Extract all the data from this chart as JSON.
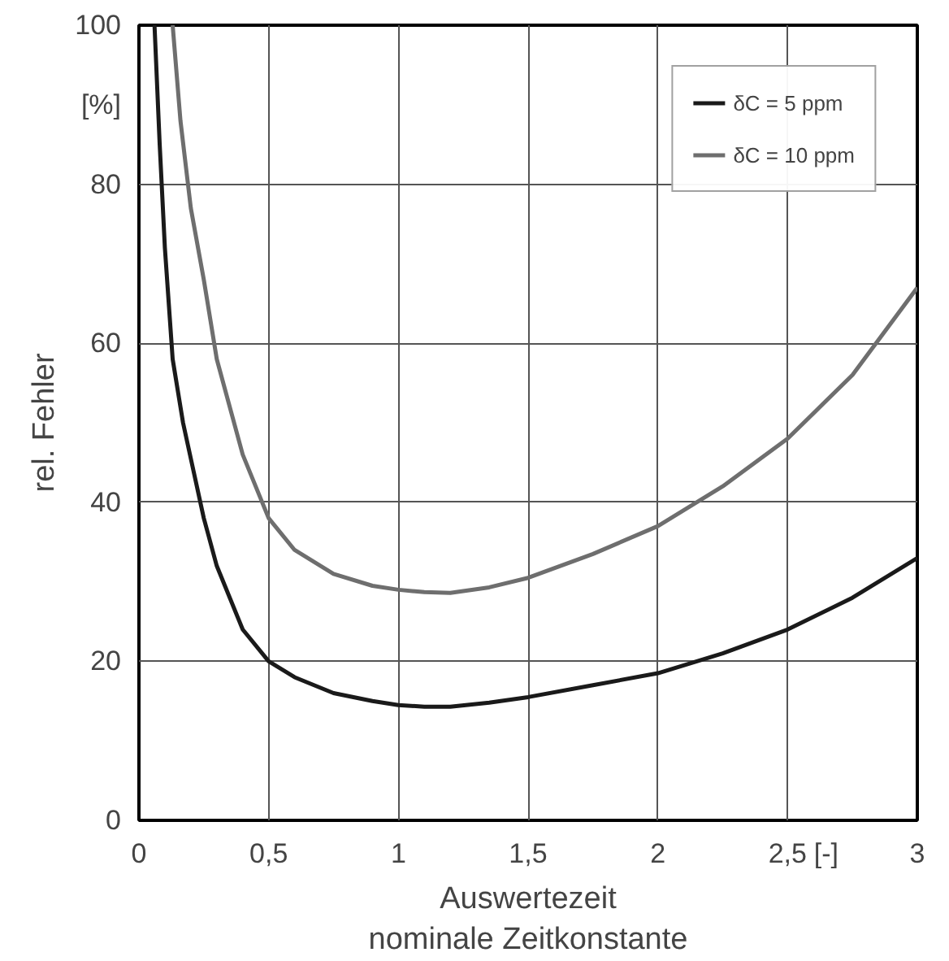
{
  "chart_data": {
    "type": "line",
    "xlabel": "Auswertezeit\nnominale Zeitkonstante",
    "ylabel": "rel. Fehler",
    "annotations": [
      "[%]",
      "[-]"
    ],
    "xlim": [
      0,
      3
    ],
    "ylim": [
      0,
      100
    ],
    "xticks": [
      0,
      {
        "value": 0.5,
        "label": "0,5"
      },
      1,
      {
        "value": 1.5,
        "label": "1,5"
      },
      2,
      {
        "value": 2.5,
        "label": "2,5"
      },
      3
    ],
    "yticks": [
      0,
      20,
      40,
      60,
      80,
      100
    ],
    "grid": true,
    "legend": "top right",
    "marker": "none",
    "line_style": "solid",
    "series": [
      {
        "name": "δC = 5 ppm",
        "color": "#1a1a1a",
        "x": [
          0.06,
          0.08,
          0.1,
          0.13,
          0.17,
          0.21,
          0.25,
          0.3,
          0.4,
          0.5,
          0.6,
          0.75,
          0.9,
          1.0,
          1.1,
          1.2,
          1.35,
          1.5,
          1.75,
          2.0,
          2.25,
          2.5,
          2.75,
          3.0
        ],
        "values": [
          100,
          85,
          72,
          58,
          50,
          44,
          38,
          32,
          24,
          20,
          18,
          16,
          15,
          14.5,
          14.3,
          14.3,
          14.8,
          15.5,
          17,
          18.5,
          21,
          24,
          28,
          33
        ]
      },
      {
        "name": "δC = 10 ppm",
        "color": "#6e6e6e",
        "x": [
          0.13,
          0.16,
          0.2,
          0.25,
          0.3,
          0.4,
          0.5,
          0.6,
          0.75,
          0.9,
          1.0,
          1.1,
          1.2,
          1.35,
          1.5,
          1.75,
          2.0,
          2.25,
          2.5,
          2.75,
          3.0
        ],
        "values": [
          100,
          88,
          77,
          68,
          58,
          46,
          38,
          34,
          31,
          29.5,
          29,
          28.7,
          28.6,
          29.3,
          30.5,
          33.5,
          37,
          42,
          48,
          56,
          67
        ]
      }
    ]
  }
}
